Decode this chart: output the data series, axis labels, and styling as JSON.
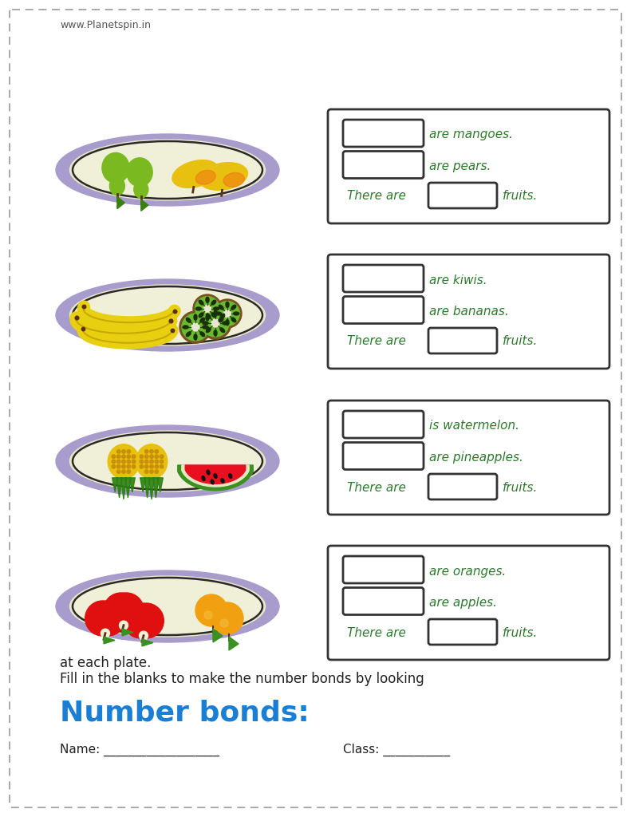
{
  "title": "Number bonds:",
  "subtitle": "Fill in the blanks to make the number bonds by looking\nat each plate.",
  "name_label": "Name: ___________________",
  "class_label": "Class: ___________",
  "title_color": "#1a7fd4",
  "text_color": "#2d7a2d",
  "body_text_color": "#222222",
  "background_color": "#ffffff",
  "footer": "www.Planetspin.in",
  "rows": [
    {
      "plate_type": 0,
      "line3": "are apples.",
      "line4": "are oranges."
    },
    {
      "plate_type": 1,
      "line3": "are pineapples.",
      "line4": "is watermelon."
    },
    {
      "plate_type": 2,
      "line3": "are bananas.",
      "line4": "are kiwis."
    },
    {
      "plate_type": 3,
      "line3": "are pears.",
      "line4": "are mangoes."
    }
  ],
  "plate_rim_color": "#a89ccc",
  "plate_body_color": "#f0f0d8",
  "plate_outline_color": "#2a2a2a"
}
